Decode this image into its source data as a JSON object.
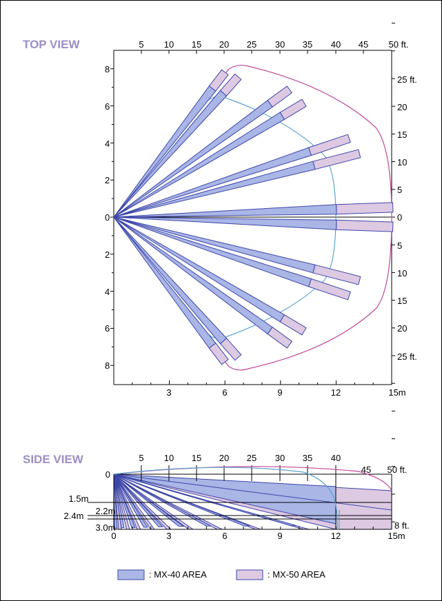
{
  "colors": {
    "mx40_fill": "#a9b6e6",
    "mx40_stroke": "#3c45a8",
    "mx50_fill": "#ddc9e2",
    "mx50_stroke": "#3c45a8",
    "mx40_outline": "#5aa3cf",
    "mx50_outline": "#c0489a",
    "title": "#9b8fc7"
  },
  "top_view": {
    "title": "TOP VIEW",
    "ft_top_ticks": [
      "5",
      "10",
      "15",
      "20",
      "25",
      "30",
      "35",
      "40",
      "45",
      "50 ft."
    ],
    "ft_right_ticks": [
      "25 ft.",
      "20",
      "15",
      "10",
      "5",
      "0",
      "5",
      "10",
      "15",
      "20",
      "25 ft."
    ],
    "m_left_ticks": [
      "8",
      "6",
      "4",
      "2",
      "0",
      "2",
      "4",
      "6",
      "8"
    ],
    "m_bottom_ticks": [
      "3",
      "6",
      "9",
      "12",
      "15m"
    ]
  },
  "side_view": {
    "title": "SIDE VIEW",
    "ft_top_ticks": [
      "5",
      "10",
      "15",
      "20",
      "25",
      "30",
      "35",
      "40",
      "45",
      "50 ft."
    ],
    "height_labels": [
      "0",
      "1.5m",
      "2.2m",
      "2.4m",
      "3.0m"
    ],
    "right_label": "8 ft.",
    "m_bottom_ticks": [
      "0",
      "3",
      "6",
      "9",
      "12",
      "15m"
    ]
  },
  "legend": {
    "mx40_label": ":  MX-40 AREA",
    "mx50_label": ":  MX-50 AREA"
  }
}
